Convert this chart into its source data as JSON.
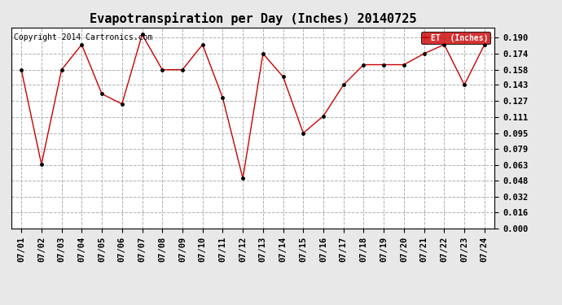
{
  "title": "Evapotranspiration per Day (Inches) 20140725",
  "copyright_text": "Copyright 2014 Cartronics.com",
  "legend_label": "ET  (Inches)",
  "x_labels": [
    "07/01",
    "07/02",
    "07/03",
    "07/04",
    "07/05",
    "07/06",
    "07/07",
    "07/08",
    "07/09",
    "07/10",
    "07/11",
    "07/12",
    "07/13",
    "07/14",
    "07/15",
    "07/16",
    "07/17",
    "07/18",
    "07/19",
    "07/20",
    "07/21",
    "07/22",
    "07/23",
    "07/24"
  ],
  "y_values": [
    0.158,
    0.064,
    0.158,
    0.183,
    0.134,
    0.124,
    0.193,
    0.158,
    0.158,
    0.183,
    0.13,
    0.05,
    0.174,
    0.151,
    0.095,
    0.112,
    0.143,
    0.163,
    0.163,
    0.163,
    0.174,
    0.183,
    0.143,
    0.183
  ],
  "yticks": [
    0.0,
    0.016,
    0.032,
    0.048,
    0.063,
    0.079,
    0.095,
    0.111,
    0.127,
    0.143,
    0.158,
    0.174,
    0.19
  ],
  "ytick_labels": [
    "0.000",
    "0.016",
    "0.032",
    "0.048",
    "0.063",
    "0.079",
    "0.095",
    "0.111",
    "0.127",
    "0.143",
    "0.158",
    "0.174",
    "0.190"
  ],
  "ylim": [
    0.0,
    0.2
  ],
  "line_color": "#cc0000",
  "marker_color": "#000000",
  "fig_background_color": "#e8e8e8",
  "plot_background_color": "#ffffff",
  "grid_color": "#b0b0b0",
  "legend_bg": "#cc0000",
  "legend_text_color": "#ffffff",
  "title_fontsize": 11,
  "tick_fontsize": 7.5,
  "copyright_fontsize": 7
}
